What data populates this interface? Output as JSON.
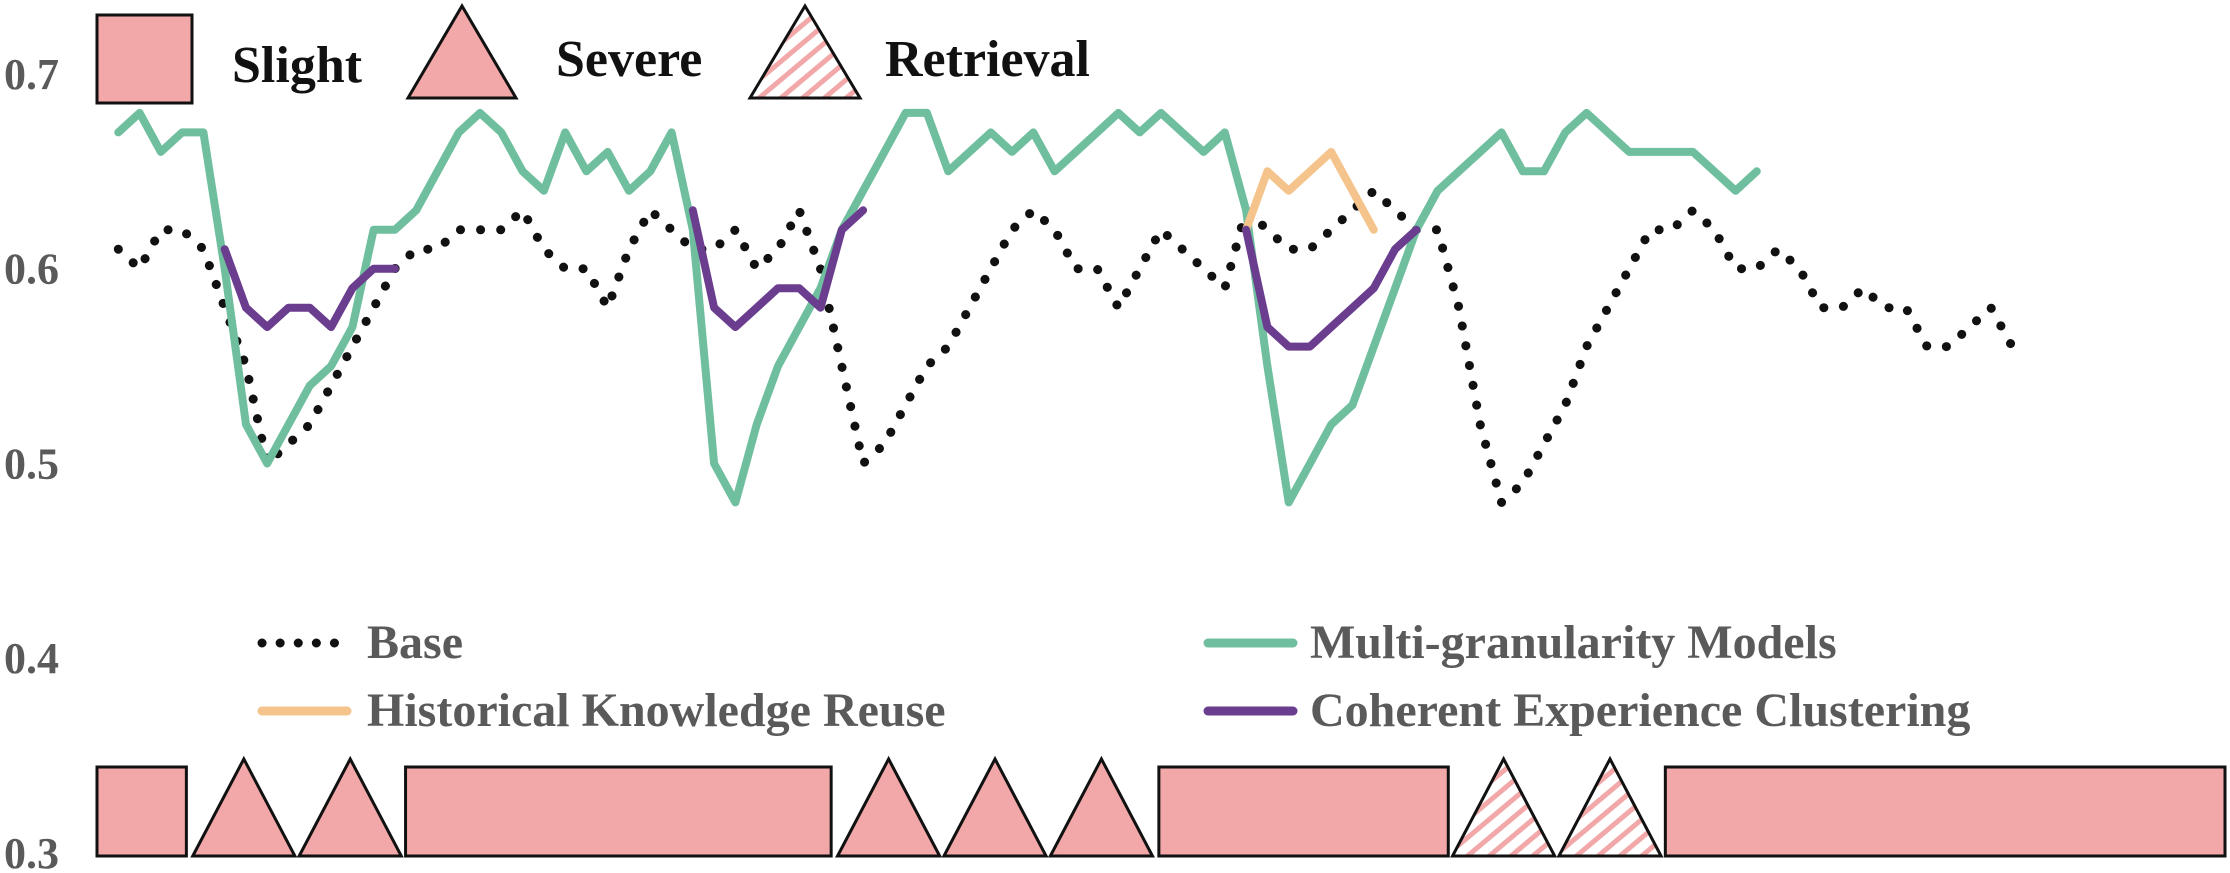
{
  "chart_data": {
    "type": "line",
    "title": "",
    "xlabel": "",
    "ylabel": "",
    "ylim": [
      0.3,
      0.72
    ],
    "yticks": [
      "0.7",
      "0.6",
      "0.5",
      "0.4",
      "0.3"
    ],
    "grid": false,
    "xlim": [
      0,
      100
    ],
    "shape_legend": [
      {
        "label": "Slight",
        "shape": "rectangle"
      },
      {
        "label": "Severe",
        "shape": "triangle"
      },
      {
        "label": "Retrieval",
        "shape": "hatched-triangle"
      }
    ],
    "line_legend": {
      "placement": "bottom",
      "entries": [
        {
          "label": "Base",
          "color": "#111111",
          "style": "dotted"
        },
        {
          "label": "Multi-granularity Models",
          "color": "#6fbf9f",
          "style": "solid"
        },
        {
          "label": "Historical Knowledge Reuse",
          "color": "#f5c48c",
          "style": "solid"
        },
        {
          "label": "Coherent Experience Clustering",
          "color": "#6a3d8f",
          "style": "solid"
        }
      ]
    },
    "segments": [
      {
        "type": "rect",
        "start": 0.0,
        "end": 4.2
      },
      {
        "type": "triangle",
        "start": 4.5,
        "end": 9.3
      },
      {
        "type": "triangle",
        "start": 9.5,
        "end": 14.3
      },
      {
        "type": "rect",
        "start": 14.5,
        "end": 34.5
      },
      {
        "type": "triangle",
        "start": 34.8,
        "end": 39.6
      },
      {
        "type": "triangle",
        "start": 39.8,
        "end": 44.6
      },
      {
        "type": "triangle",
        "start": 44.8,
        "end": 49.6
      },
      {
        "type": "rect",
        "start": 49.9,
        "end": 63.5
      },
      {
        "type": "hatched-triangle",
        "start": 63.7,
        "end": 68.5
      },
      {
        "type": "hatched-triangle",
        "start": 68.7,
        "end": 73.5
      },
      {
        "type": "rect",
        "start": 73.7,
        "end": 100.0
      }
    ],
    "series": [
      {
        "name": "Base",
        "color": "#111111",
        "style": "dotted",
        "points": [
          [
            1,
            0.61
          ],
          [
            2,
            0.6
          ],
          [
            3,
            0.62
          ],
          [
            4,
            0.62
          ],
          [
            5,
            0.61
          ],
          [
            6,
            0.58
          ],
          [
            7,
            0.55
          ],
          [
            8,
            0.5
          ],
          [
            9,
            0.51
          ],
          [
            10,
            0.52
          ],
          [
            11,
            0.54
          ],
          [
            12,
            0.56
          ],
          [
            13,
            0.58
          ],
          [
            14,
            0.6
          ],
          [
            15,
            0.61
          ],
          [
            16,
            0.61
          ],
          [
            17,
            0.62
          ],
          [
            18,
            0.62
          ],
          [
            19,
            0.62
          ],
          [
            20,
            0.63
          ],
          [
            21,
            0.61
          ],
          [
            22,
            0.6
          ],
          [
            23,
            0.6
          ],
          [
            24,
            0.58
          ],
          [
            25,
            0.61
          ],
          [
            26,
            0.63
          ],
          [
            27,
            0.62
          ],
          [
            28,
            0.61
          ],
          [
            29,
            0.61
          ],
          [
            30,
            0.62
          ],
          [
            31,
            0.6
          ],
          [
            32,
            0.61
          ],
          [
            33,
            0.63
          ],
          [
            34,
            0.6
          ],
          [
            35,
            0.55
          ],
          [
            36,
            0.5
          ],
          [
            37,
            0.51
          ],
          [
            38,
            0.53
          ],
          [
            39,
            0.55
          ],
          [
            40,
            0.56
          ],
          [
            41,
            0.58
          ],
          [
            42,
            0.6
          ],
          [
            43,
            0.62
          ],
          [
            44,
            0.63
          ],
          [
            45,
            0.62
          ],
          [
            46,
            0.6
          ],
          [
            47,
            0.6
          ],
          [
            48,
            0.58
          ],
          [
            49,
            0.6
          ],
          [
            50,
            0.62
          ],
          [
            51,
            0.61
          ],
          [
            52,
            0.6
          ],
          [
            53,
            0.59
          ],
          [
            54,
            0.63
          ],
          [
            55,
            0.62
          ],
          [
            56,
            0.61
          ],
          [
            57,
            0.61
          ],
          [
            58,
            0.62
          ],
          [
            59,
            0.63
          ],
          [
            60,
            0.64
          ],
          [
            61,
            0.63
          ],
          [
            62,
            0.62
          ],
          [
            63,
            0.62
          ],
          [
            64,
            0.58
          ],
          [
            65,
            0.52
          ],
          [
            66,
            0.48
          ],
          [
            67,
            0.49
          ],
          [
            68,
            0.51
          ],
          [
            69,
            0.53
          ],
          [
            70,
            0.56
          ],
          [
            71,
            0.58
          ],
          [
            72,
            0.6
          ],
          [
            73,
            0.62
          ],
          [
            74,
            0.62
          ],
          [
            75,
            0.63
          ],
          [
            76,
            0.62
          ],
          [
            77,
            0.6
          ],
          [
            78,
            0.6
          ],
          [
            79,
            0.61
          ],
          [
            80,
            0.6
          ],
          [
            81,
            0.58
          ],
          [
            82,
            0.58
          ],
          [
            83,
            0.59
          ],
          [
            84,
            0.58
          ],
          [
            85,
            0.58
          ],
          [
            86,
            0.56
          ],
          [
            87,
            0.56
          ],
          [
            88,
            0.57
          ],
          [
            89,
            0.58
          ],
          [
            90,
            0.56
          ]
        ]
      },
      {
        "name": "Multi-granularity Models",
        "color": "#6fbf9f",
        "style": "solid",
        "points": [
          [
            1,
            0.67
          ],
          [
            2,
            0.68
          ],
          [
            3,
            0.66
          ],
          [
            4,
            0.67
          ],
          [
            5,
            0.67
          ],
          [
            6,
            0.6
          ],
          [
            7,
            0.52
          ],
          [
            8,
            0.5
          ],
          [
            9,
            0.52
          ],
          [
            10,
            0.54
          ],
          [
            11,
            0.55
          ],
          [
            12,
            0.57
          ],
          [
            13,
            0.62
          ],
          [
            14,
            0.62
          ],
          [
            15,
            0.63
          ],
          [
            16,
            0.65
          ],
          [
            17,
            0.67
          ],
          [
            18,
            0.68
          ],
          [
            19,
            0.67
          ],
          [
            20,
            0.65
          ],
          [
            21,
            0.64
          ],
          [
            22,
            0.67
          ],
          [
            23,
            0.65
          ],
          [
            24,
            0.66
          ],
          [
            25,
            0.64
          ],
          [
            26,
            0.65
          ],
          [
            27,
            0.67
          ],
          [
            28,
            0.62
          ],
          [
            29,
            0.5
          ],
          [
            30,
            0.48
          ],
          [
            31,
            0.52
          ],
          [
            32,
            0.55
          ],
          [
            33,
            0.57
          ],
          [
            34,
            0.59
          ],
          [
            35,
            0.62
          ],
          [
            36,
            0.64
          ],
          [
            37,
            0.66
          ],
          [
            38,
            0.68
          ],
          [
            39,
            0.68
          ],
          [
            40,
            0.65
          ],
          [
            41,
            0.66
          ],
          [
            42,
            0.67
          ],
          [
            43,
            0.66
          ],
          [
            44,
            0.67
          ],
          [
            45,
            0.65
          ],
          [
            46,
            0.66
          ],
          [
            47,
            0.67
          ],
          [
            48,
            0.68
          ],
          [
            49,
            0.67
          ],
          [
            50,
            0.68
          ],
          [
            51,
            0.67
          ],
          [
            52,
            0.66
          ],
          [
            53,
            0.67
          ],
          [
            54,
            0.63
          ],
          [
            55,
            0.55
          ],
          [
            56,
            0.48
          ],
          [
            57,
            0.5
          ],
          [
            58,
            0.52
          ],
          [
            59,
            0.53
          ],
          [
            60,
            0.56
          ],
          [
            61,
            0.59
          ],
          [
            62,
            0.62
          ],
          [
            63,
            0.64
          ],
          [
            64,
            0.65
          ],
          [
            65,
            0.66
          ],
          [
            66,
            0.67
          ],
          [
            67,
            0.65
          ],
          [
            68,
            0.65
          ],
          [
            69,
            0.67
          ],
          [
            70,
            0.68
          ],
          [
            71,
            0.67
          ],
          [
            72,
            0.66
          ],
          [
            73,
            0.66
          ],
          [
            74,
            0.66
          ],
          [
            75,
            0.66
          ],
          [
            76,
            0.65
          ],
          [
            77,
            0.64
          ],
          [
            78,
            0.65
          ]
        ]
      },
      {
        "name": "Historical Knowledge Reuse",
        "color": "#f5c48c",
        "style": "solid",
        "points": [
          [
            54,
            0.62
          ],
          [
            55,
            0.65
          ],
          [
            56,
            0.64
          ],
          [
            57,
            0.65
          ],
          [
            58,
            0.66
          ],
          [
            59,
            0.64
          ],
          [
            60,
            0.62
          ]
        ]
      },
      {
        "name": "Coherent Experience Clustering",
        "color": "#6a3d8f",
        "style": "solid",
        "points": [
          [
            6,
            0.61
          ],
          [
            7,
            0.58
          ],
          [
            8,
            0.57
          ],
          [
            9,
            0.58
          ],
          [
            10,
            0.58
          ],
          [
            11,
            0.57
          ],
          [
            12,
            0.59
          ],
          [
            13,
            0.6
          ],
          [
            14,
            0.6
          ],
          [
            28,
            0.63
          ],
          [
            29,
            0.58
          ],
          [
            30,
            0.57
          ],
          [
            31,
            0.58
          ],
          [
            32,
            0.59
          ],
          [
            33,
            0.59
          ],
          [
            34,
            0.58
          ],
          [
            35,
            0.62
          ],
          [
            36,
            0.63
          ],
          [
            54,
            0.62
          ],
          [
            55,
            0.57
          ],
          [
            56,
            0.56
          ],
          [
            57,
            0.56
          ],
          [
            58,
            0.57
          ],
          [
            59,
            0.58
          ],
          [
            60,
            0.59
          ],
          [
            61,
            0.61
          ],
          [
            62,
            0.62
          ]
        ]
      }
    ]
  }
}
